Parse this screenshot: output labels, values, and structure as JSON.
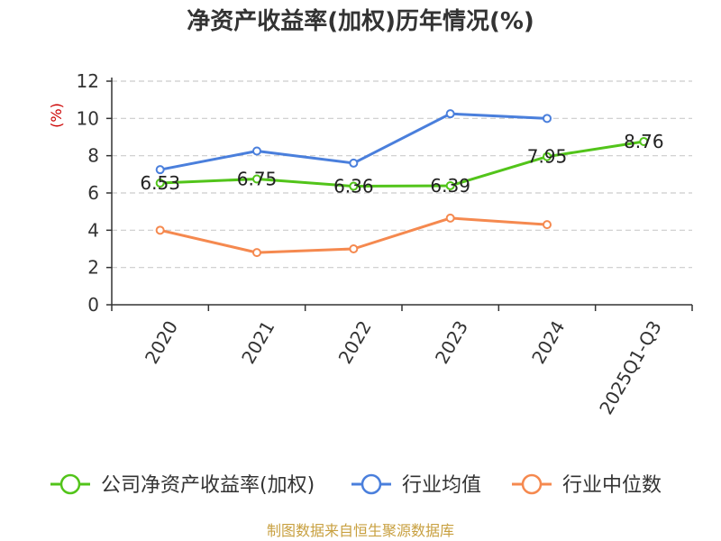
{
  "chart_data": {
    "type": "line",
    "title": "净资产收益率(加权)历年情况(%)",
    "ylabel": "(%)",
    "categories": [
      "2020",
      "2021",
      "2022",
      "2023",
      "2024",
      "2025Q1-Q3"
    ],
    "ylim": [
      0,
      12
    ],
    "yticks": [
      0,
      2,
      4,
      6,
      8,
      10,
      12
    ],
    "grid": true,
    "legend_position": "bottom",
    "series": [
      {
        "name": "公司净资产收益率(加权)",
        "color": "#52c41a",
        "values": [
          6.53,
          6.75,
          6.36,
          6.39,
          7.95,
          8.76
        ],
        "labels": [
          "6.53",
          "6.75",
          "6.36",
          "6.39",
          "7.95",
          "8.76"
        ]
      },
      {
        "name": "行业均值",
        "color": "#4a7fdc",
        "values": [
          7.25,
          8.25,
          7.6,
          10.25,
          10.0,
          null
        ]
      },
      {
        "name": "行业中位数",
        "color": "#f5894f",
        "values": [
          4.0,
          2.8,
          3.0,
          4.65,
          4.3,
          null
        ]
      }
    ]
  },
  "source": "制图数据来自恒生聚源数据库",
  "colors": {
    "axis": "#333333",
    "grid": "#cccccc",
    "ylabel": "#cc0000",
    "source": "#c8a040"
  }
}
